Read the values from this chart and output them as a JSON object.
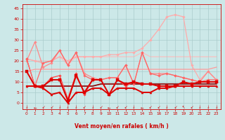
{
  "bg_color": "#cce8e8",
  "grid_color": "#aacccc",
  "xlabel": "Vent moyen/en rafales ( km/h )",
  "xlabel_color": "#cc0000",
  "tick_color": "#cc0000",
  "x_ticks": [
    0,
    1,
    2,
    3,
    4,
    5,
    6,
    7,
    8,
    9,
    10,
    11,
    12,
    13,
    14,
    15,
    16,
    17,
    18,
    19,
    20,
    21,
    22,
    23
  ],
  "y_ticks": [
    0,
    5,
    10,
    15,
    20,
    25,
    30,
    35,
    40,
    45
  ],
  "ylim": [
    -3,
    47
  ],
  "xlim": [
    -0.5,
    23.5
  ],
  "series": [
    {
      "comment": "pale pink rising line - rafales max, goes to ~45 at x=18",
      "x": [
        0,
        1,
        2,
        3,
        4,
        5,
        6,
        7,
        8,
        9,
        10,
        11,
        12,
        13,
        14,
        15,
        16,
        17,
        18,
        19,
        20,
        21,
        22,
        23
      ],
      "y": [
        21,
        20,
        19,
        20,
        22,
        20,
        22,
        22,
        22,
        22,
        23,
        23,
        24,
        24,
        26,
        30,
        35,
        41,
        42,
        41,
        18,
        11,
        15,
        11
      ],
      "color": "#ffaaaa",
      "lw": 0.9,
      "marker": "D",
      "markersize": 1.8,
      "zorder": 2
    },
    {
      "comment": "medium pink - vent moyen avec rafales",
      "x": [
        0,
        1,
        2,
        3,
        4,
        5,
        6,
        7,
        8,
        9,
        10,
        11,
        12,
        13,
        14,
        15,
        16,
        17,
        18,
        19,
        20,
        21,
        22,
        23
      ],
      "y": [
        20,
        29,
        17,
        19,
        25,
        18,
        24,
        14,
        12,
        11,
        12,
        12,
        18,
        9,
        24,
        14,
        14,
        14,
        13,
        12,
        11,
        10,
        15,
        11
      ],
      "color": "#ff8888",
      "lw": 0.9,
      "marker": "D",
      "markersize": 1.8,
      "zorder": 2
    },
    {
      "comment": "medium pink flat line around 16",
      "x": [
        0,
        1,
        2,
        3,
        4,
        5,
        6,
        7,
        8,
        9,
        10,
        11,
        12,
        13,
        14,
        15,
        16,
        17,
        18,
        19,
        20,
        21,
        22,
        23
      ],
      "y": [
        15,
        16,
        16,
        16,
        16,
        16,
        16,
        16,
        16,
        16,
        16,
        16,
        16,
        16,
        16,
        16,
        16,
        16,
        16,
        16,
        16,
        16,
        16,
        17
      ],
      "color": "#ff9999",
      "lw": 0.9,
      "marker": null,
      "zorder": 2
    },
    {
      "comment": "light pink line around 20-22",
      "x": [
        0,
        1,
        2,
        3,
        4,
        5,
        6,
        7,
        8,
        9,
        10,
        11,
        12,
        13,
        14,
        15,
        16,
        17,
        18,
        19,
        20,
        21,
        22,
        23
      ],
      "y": [
        21,
        20,
        20,
        20,
        22,
        18,
        22,
        22,
        22,
        22,
        22,
        22,
        22,
        22,
        24,
        22,
        22,
        22,
        22,
        22,
        22,
        22,
        22,
        22
      ],
      "color": "#ffbbbb",
      "lw": 0.8,
      "marker": null,
      "zorder": 1
    },
    {
      "comment": "red line with squares - vent moyen principal",
      "x": [
        0,
        1,
        2,
        3,
        4,
        5,
        6,
        7,
        8,
        9,
        10,
        11,
        12,
        13,
        14,
        15,
        16,
        17,
        18,
        19,
        20,
        21,
        22,
        23
      ],
      "y": [
        15,
        8,
        8,
        11,
        11,
        1,
        13,
        5,
        11,
        11,
        4,
        11,
        9,
        10,
        9,
        9,
        8,
        8,
        8,
        10,
        9,
        10,
        10,
        10
      ],
      "color": "#dd0000",
      "lw": 1.4,
      "marker": "s",
      "markersize": 2.2,
      "zorder": 4
    },
    {
      "comment": "red line with triangles - vent moyen bas",
      "x": [
        0,
        1,
        2,
        3,
        4,
        5,
        6,
        7,
        8,
        9,
        10,
        11,
        12,
        13,
        14,
        15,
        16,
        17,
        18,
        19,
        20,
        21,
        22,
        23
      ],
      "y": [
        8,
        8,
        7,
        4,
        5,
        0,
        5,
        5,
        7,
        7,
        4,
        7,
        7,
        7,
        5,
        5,
        7,
        7,
        8,
        8,
        8,
        8,
        8,
        8
      ],
      "color": "#dd0000",
      "lw": 1.4,
      "marker": "^",
      "markersize": 2.2,
      "zorder": 4
    },
    {
      "comment": "dark red horizontal line around 8-9",
      "x": [
        0,
        1,
        2,
        3,
        4,
        5,
        6,
        7,
        8,
        9,
        10,
        11,
        12,
        13,
        14,
        15,
        16,
        17,
        18,
        19,
        20,
        21,
        22,
        23
      ],
      "y": [
        8,
        8,
        8,
        8,
        8,
        8,
        8,
        8,
        8,
        9,
        9,
        9,
        9,
        9,
        9,
        9,
        9,
        9,
        9,
        9,
        9,
        9,
        9,
        9
      ],
      "color": "#880000",
      "lw": 1.2,
      "marker": null,
      "zorder": 3
    },
    {
      "comment": "medium red with diamonds",
      "x": [
        0,
        1,
        2,
        3,
        4,
        5,
        6,
        7,
        8,
        9,
        10,
        11,
        12,
        13,
        14,
        15,
        16,
        17,
        18,
        19,
        20,
        21,
        22,
        23
      ],
      "y": [
        21,
        8,
        8,
        12,
        13,
        2,
        14,
        4,
        11,
        11,
        4,
        11,
        8,
        10,
        9,
        9,
        8,
        8,
        8,
        10,
        9,
        10,
        10,
        10
      ],
      "color": "#ff4444",
      "lw": 0.9,
      "marker": "D",
      "markersize": 1.8,
      "zorder": 3
    },
    {
      "comment": "another red line - rafales",
      "x": [
        0,
        1,
        2,
        3,
        4,
        5,
        6,
        7,
        8,
        9,
        10,
        11,
        12,
        13,
        14,
        15,
        16,
        17,
        18,
        19,
        20,
        21,
        22,
        23
      ],
      "y": [
        21,
        8,
        19,
        20,
        25,
        18,
        24,
        13,
        11,
        11,
        12,
        12,
        18,
        9,
        24,
        14,
        13,
        14,
        13,
        12,
        11,
        10,
        11,
        11
      ],
      "color": "#ff6666",
      "lw": 0.9,
      "marker": "D",
      "markersize": 1.8,
      "zorder": 3
    }
  ],
  "wind_arrow_angles": [
    180,
    270,
    225,
    225,
    180,
    180,
    180,
    225,
    180,
    225,
    270,
    225,
    225,
    180,
    270,
    225,
    225,
    180,
    225,
    315,
    225,
    180,
    180,
    180
  ]
}
